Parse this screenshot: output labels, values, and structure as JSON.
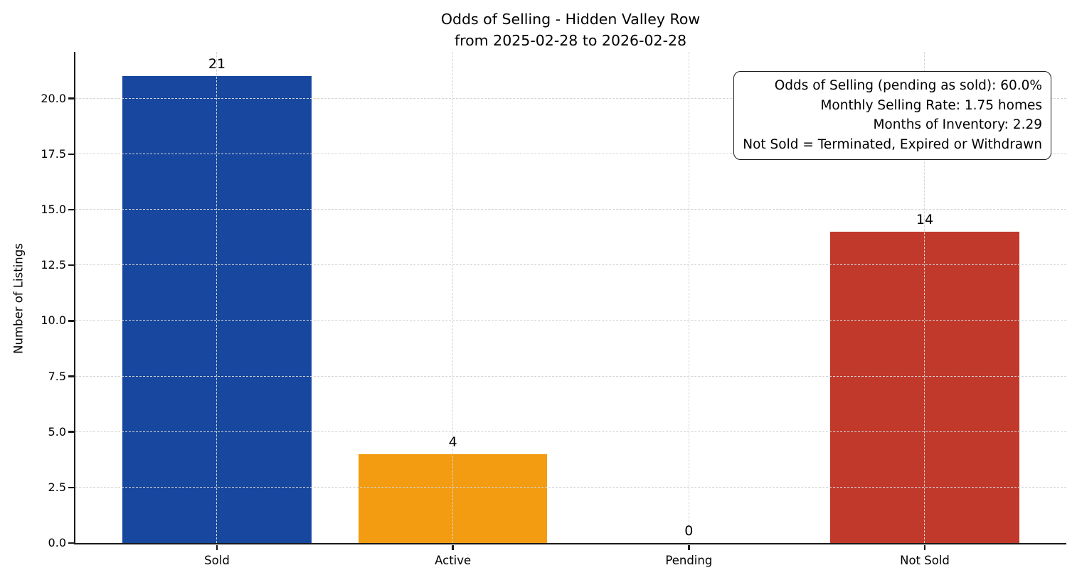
{
  "title": {
    "line1": "Odds of Selling - Hidden Valley Row",
    "line2": "from 2025-02-28 to 2026-02-28"
  },
  "annotation_box": {
    "lines": [
      "Odds of Selling (pending as sold): 60.0%",
      "Monthly Selling Rate: 1.75 homes",
      "Months of Inventory: 2.29",
      "Not Sold = Terminated, Expired or Withdrawn"
    ]
  },
  "chart_data": {
    "type": "bar",
    "title": "Odds of Selling - Hidden Valley Row\nfrom 2025-02-28 to 2026-02-28",
    "categories": [
      "Sold",
      "Active",
      "Pending",
      "Not Sold"
    ],
    "values": [
      21,
      4,
      0,
      14
    ],
    "bar_value_labels": [
      "21",
      "4",
      "0",
      "14"
    ],
    "colors": [
      "#17479E",
      "#F39C12",
      null,
      "#C0392B"
    ],
    "xlabel": "",
    "ylabel": "Number of Listings",
    "yticks": [
      0,
      2.5,
      5,
      7.5,
      10,
      12.5,
      15,
      17.5,
      20
    ],
    "ylim": [
      0,
      22.1
    ],
    "xlim": [
      -0.6,
      3.6
    ],
    "bar_width": 0.8,
    "grid": "dashed light-gray, horizontal and vertical, drawn above bars",
    "grid_color": "#d4d4d4",
    "spine_color": "#1a1a1a",
    "legend_position": "none (text box top-right)"
  }
}
